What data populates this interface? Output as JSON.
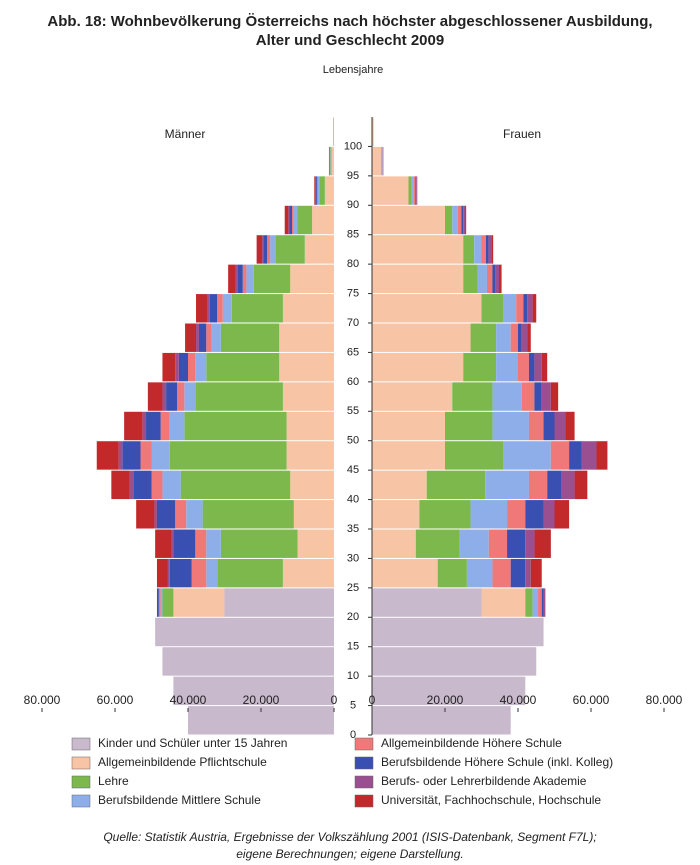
{
  "chart_data": {
    "type": "population-pyramid",
    "title": [
      "Abb. 18: Wohnbevölkerung Österreichs nach höchster abgeschlossener Ausbildung,",
      "Alter und Geschlecht 2009"
    ],
    "ylabel": "Lebensjahre",
    "left_label": "Männer",
    "right_label": "Frauen",
    "source": [
      "Quelle: Statistik Austria, Ergebnisse der Volkszählung 2001 (ISIS-Datenbank, Segment F7L);",
      "eigene Berechnungen; eigene Darstellung."
    ],
    "ages": [
      0,
      5,
      10,
      15,
      20,
      25,
      30,
      35,
      40,
      45,
      50,
      55,
      60,
      65,
      70,
      75,
      80,
      85,
      90,
      95,
      100
    ],
    "ylim": [
      0,
      105
    ],
    "yticks": [
      0,
      5,
      10,
      15,
      20,
      25,
      30,
      35,
      40,
      45,
      50,
      55,
      60,
      65,
      70,
      75,
      80,
      85,
      90,
      95,
      100
    ],
    "xlim": [
      0,
      80000
    ],
    "xticks": [
      0,
      {
        "value": 20000,
        "label": "20.000"
      },
      {
        "value": 40000,
        "label": "40.000"
      },
      {
        "value": 60000,
        "label": "60.000"
      },
      {
        "value": 80000,
        "label": "80.000"
      }
    ],
    "series": [
      {
        "name": "Kinder und Schüler unter 15 Jahren",
        "color": "#c8b9cc",
        "male": [
          40000,
          44000,
          47000,
          49000,
          30000,
          0,
          0,
          0,
          0,
          0,
          0,
          0,
          0,
          0,
          0,
          0,
          0,
          0,
          0,
          0,
          0
        ],
        "female": [
          38000,
          42000,
          45000,
          47000,
          30000,
          0,
          0,
          0,
          0,
          0,
          0,
          0,
          0,
          0,
          0,
          0,
          0,
          0,
          0,
          0,
          0
        ]
      },
      {
        "name": "Allgemeinbildende Pflichtschule",
        "color": "#f8c4a6",
        "male": [
          0,
          0,
          0,
          0,
          14000,
          14000,
          10000,
          11000,
          12000,
          13000,
          13000,
          14000,
          15000,
          15000,
          14000,
          12000,
          8000,
          6000,
          2500,
          700,
          100
        ],
        "female": [
          0,
          0,
          0,
          0,
          12000,
          18000,
          12000,
          13000,
          15000,
          20000,
          20000,
          22000,
          25000,
          27000,
          30000,
          25000,
          25000,
          20000,
          10000,
          2500,
          300
        ]
      },
      {
        "name": "Lehre",
        "color": "#7cb84c",
        "male": [
          0,
          0,
          0,
          0,
          3000,
          18000,
          21000,
          25000,
          30000,
          32000,
          28000,
          24000,
          20000,
          16000,
          14000,
          10000,
          8000,
          4000,
          1500,
          300,
          50
        ],
        "female": [
          0,
          0,
          0,
          0,
          2000,
          8000,
          12000,
          14000,
          16000,
          16000,
          13000,
          11000,
          9000,
          7000,
          6000,
          4000,
          3000,
          2000,
          800,
          200,
          30
        ]
      },
      {
        "name": "Berufsbildende Mittlere Schule",
        "color": "#8eaeea",
        "male": [
          0,
          0,
          0,
          0,
          500,
          3000,
          4000,
          4500,
          5000,
          5000,
          4000,
          3000,
          3000,
          2500,
          2500,
          2000,
          1500,
          1000,
          400,
          100,
          20
        ],
        "female": [
          0,
          0,
          0,
          0,
          1500,
          7000,
          8000,
          10000,
          12000,
          13000,
          10000,
          8000,
          6000,
          4000,
          3500,
          2500,
          2000,
          1500,
          700,
          200,
          30
        ]
      },
      {
        "name": "Allgemeinbildende Höhere Schule",
        "color": "#f07878",
        "male": [
          0,
          0,
          0,
          0,
          500,
          4000,
          3000,
          3000,
          3000,
          3000,
          2500,
          2000,
          2000,
          1500,
          1500,
          1000,
          800,
          500,
          200,
          50,
          10
        ],
        "female": [
          0,
          0,
          0,
          0,
          1000,
          5000,
          5000,
          5000,
          5000,
          5000,
          4000,
          3500,
          3000,
          2000,
          2000,
          1500,
          1200,
          1000,
          400,
          100,
          20
        ]
      },
      {
        "name": "Berufsbildende Höhere Schule (inkl. Kolleg)",
        "color": "#3a4fb2",
        "male": [
          0,
          0,
          0,
          0,
          500,
          6000,
          6000,
          5000,
          5000,
          5000,
          4000,
          3000,
          2500,
          2000,
          2000,
          1500,
          1000,
          700,
          300,
          100,
          20
        ],
        "female": [
          0,
          0,
          0,
          0,
          500,
          4000,
          5000,
          5000,
          4000,
          3500,
          3000,
          2000,
          1500,
          1000,
          1000,
          800,
          700,
          500,
          200,
          50,
          10
        ]
      },
      {
        "name": "Berufs- oder Lehrerbildende Akademie",
        "color": "#9a4f90",
        "male": [
          0,
          0,
          0,
          0,
          0,
          500,
          500,
          700,
          1000,
          1000,
          1000,
          1000,
          1000,
          800,
          800,
          500,
          400,
          300,
          100,
          30,
          5
        ],
        "female": [
          0,
          0,
          0,
          0,
          500,
          1500,
          2500,
          3000,
          3500,
          4000,
          3000,
          2500,
          2000,
          1500,
          1500,
          1000,
          800,
          500,
          200,
          50,
          10
        ]
      },
      {
        "name": "Universität, Fachhochschule, Hochschule",
        "color": "#c2292b",
        "male": [
          0,
          0,
          0,
          0,
          0,
          3000,
          4500,
          5000,
          5000,
          6000,
          5000,
          4000,
          3500,
          3000,
          3000,
          2000,
          1500,
          1000,
          400,
          100,
          20
        ],
        "female": [
          0,
          0,
          0,
          0,
          0,
          3000,
          4500,
          4000,
          3500,
          3000,
          2500,
          2000,
          1500,
          1000,
          1000,
          700,
          500,
          300,
          100,
          30,
          5
        ]
      }
    ]
  }
}
